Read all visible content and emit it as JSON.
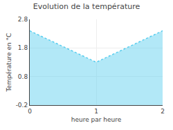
{
  "chart_data": {
    "type": "area",
    "title": "Evolution de la température",
    "xlabel": "heure par heure",
    "ylabel": "Température en °C",
    "x": [
      0,
      1,
      2
    ],
    "values": [
      2.4,
      1.3,
      2.4
    ],
    "color": "#55ccee",
    "line_style": "dotted",
    "xlim": [
      0,
      2
    ],
    "ylim": [
      -0.2,
      2.8
    ],
    "xticks": [
      0,
      1,
      2
    ],
    "yticks": [
      -0.2,
      0.8,
      1.8,
      2.8
    ],
    "grid": true
  }
}
